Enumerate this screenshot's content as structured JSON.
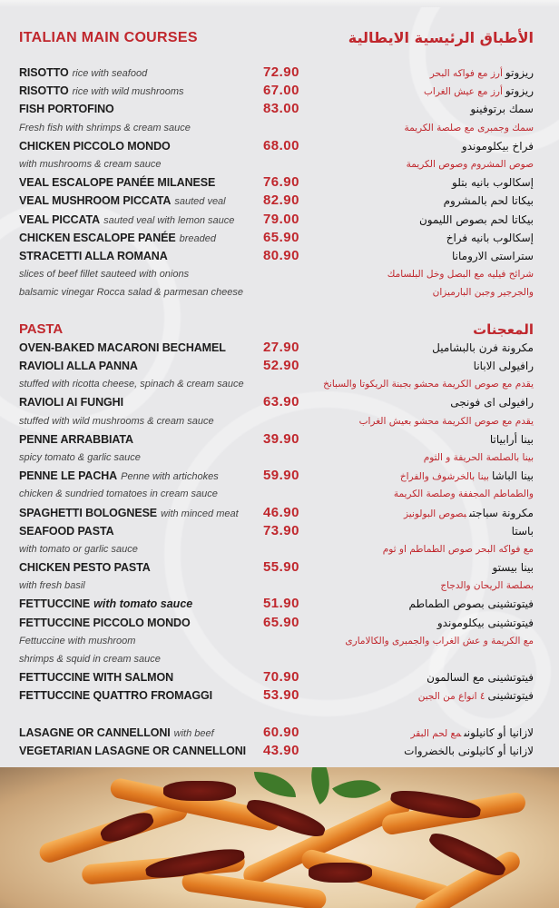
{
  "colors": {
    "accent": "#c0272d",
    "background": "#e8e8ea",
    "text": "#1d1d1d"
  },
  "sections": [
    {
      "title_en": "ITALIAN MAIN COURSES",
      "title_ar": "الأطباق الرئيسية الايطالية",
      "rows": [
        {
          "en": "RISOTTO",
          "en_note": "rice with seafood",
          "price": "72.90",
          "ar": "ريزوتو",
          "ar_note": "أرز مع فواكه البحر"
        },
        {
          "en": "RISOTTO",
          "en_note": "rice with wild mushrooms",
          "price": "67.00",
          "ar": "ريزوتو",
          "ar_note": "أرز مع عيش الغراب"
        },
        {
          "en": "FISH PORTOFINO",
          "price": "83.00",
          "ar": "سمك برتوفينو"
        },
        {
          "desc": true,
          "en": "Fresh fish with shrimps & cream sauce",
          "ar": "سمك وجمبرى مع صلصة الكريمة"
        },
        {
          "en": "CHICKEN PICCOLO MONDO",
          "price": "68.00",
          "ar": "فراخ بيكلوموندو"
        },
        {
          "desc": true,
          "en": "with mushrooms & cream sauce",
          "ar": "صوص المشروم وصوص الكريمة"
        },
        {
          "en": "VEAL ESCALOPE PANÉE MILANESE",
          "price": "76.90",
          "ar": "إسكالوب بانيه بتلو"
        },
        {
          "en": "VEAL MUSHROOM PICCATA",
          "en_note": "sauted veal",
          "price": "82.90",
          "ar": "بيكاتا لحم بالمشروم"
        },
        {
          "en": "VEAL PICCATA",
          "en_note": "sauted veal with lemon sauce",
          "price": "79.00",
          "ar": "بيكاتا لحم بصوص الليمون"
        },
        {
          "en": "CHICKEN ESCALOPE PANÉE",
          "en_note": "breaded",
          "price": "65.90",
          "ar": "إسكالوب بانيه فراخ"
        },
        {
          "en": "STRACETTI ALLA ROMANA",
          "price": "80.90",
          "ar": "ستراستى الارومانا"
        },
        {
          "desc": true,
          "en": "slices of beef fillet sauteed with onions",
          "ar": "شرائح فيليه مع البصل وخل البلسامك"
        },
        {
          "desc": true,
          "en": "balsamic vinegar Rocca salad & parmesan cheese",
          "ar": "والجرجير وجبن البارميزان"
        }
      ]
    },
    {
      "title_en": "PASTA",
      "title_ar": "المعجنات",
      "rows": [
        {
          "en": "OVEN-BAKED MACARONI BECHAMEL",
          "price": "27.90",
          "ar": "مكرونة فرن بالبشاميل"
        },
        {
          "en": "RAVIOLI ALLA PANNA",
          "price": "52.90",
          "ar": "رافيولى الابانا"
        },
        {
          "desc": true,
          "en": "stuffed with ricotta cheese, spinach & cream sauce",
          "ar": "يقدم مع صوص الكريمة محشو بجبنة الريكوتا والسبانخ"
        },
        {
          "en": "RAVIOLI AI FUNGHI",
          "price": "63.90",
          "ar": "رافيولى اى فونجى"
        },
        {
          "desc": true,
          "en": "stuffed with wild mushrooms & cream sauce",
          "ar": "يقدم مع صوص الكريمة محشو بعيش الغراب"
        },
        {
          "en": "PENNE ARRABBIATA",
          "price": "39.90",
          "ar": "بينا أرابياتا"
        },
        {
          "desc": true,
          "en": "spicy tomato & garlic sauce",
          "ar": "بينا بالصلصة الحريفة و الثوم"
        },
        {
          "en": "PENNE LE PACHA",
          "en_note": "Penne with artichokes",
          "price": "59.90",
          "ar": "بينا الباشا",
          "ar_note": "بينا بالخرشوف والفراخ"
        },
        {
          "desc": true,
          "en": "chicken & sundried tomatoes in cream sauce",
          "ar": "والطماطم المجففة وصلصة الكريمة"
        },
        {
          "en": "SPAGHETTI BOLOGNESE",
          "en_note": "with minced meat",
          "price": "46.90",
          "ar": "مكرونة سباجتى",
          "ar_note": "بصوص البولونيز"
        },
        {
          "en": "SEAFOOD PASTA",
          "price": "73.90",
          "ar": "باستا"
        },
        {
          "desc": true,
          "en": "with tomato or garlic sauce",
          "ar": "مع فواكه البحر صوص الطماطم او ثوم"
        },
        {
          "en": "CHICKEN PESTO PASTA",
          "price": "55.90",
          "ar": "بينا بيستو"
        },
        {
          "desc": true,
          "en": "with fresh basil",
          "ar": "بصلصة الريحان والدجاج"
        },
        {
          "en": "FETTUCCINE",
          "en_note": "with tomato sauce",
          "note_strong": true,
          "price": "51.90",
          "ar": "فيتوتشينى بصوص الطماطم"
        },
        {
          "en": "FETTUCCINE PICCOLO MONDO",
          "price": "65.90",
          "ar": "فيتوتشينى بيكلوموندو"
        },
        {
          "desc": true,
          "en": "Fettuccine with mushroom",
          "ar": "مع الكريمة و عش الغراب والجمبرى والكالامارى"
        },
        {
          "desc": true,
          "en": " shrimps & squid in cream sauce"
        },
        {
          "en": "FETTUCCINE WITH SALMON",
          "price": "70.90",
          "ar": "فيتوتشينى مع السالمون"
        },
        {
          "en": "FETTUCCINE QUATTRO FROMAGGI",
          "price": "53.90",
          "ar": "فيتوتشينى",
          "ar_note": "٤ انواع من الجبن"
        },
        {
          "blank": true
        },
        {
          "en": "LASAGNE OR CANNELLONI",
          "en_note": "with beef",
          "price": "60.90",
          "ar": "لازانيا أو كانيلونى",
          "ar_note": "مع لحم البقر"
        },
        {
          "en": "VEGETARIAN LASAGNE OR CANNELLONI",
          "price": "43.90",
          "ar": "لازانيا أو كانيلونى بالخضروات"
        }
      ]
    }
  ],
  "photo": {
    "subject": "penne pasta with sundried tomatoes and basil"
  }
}
